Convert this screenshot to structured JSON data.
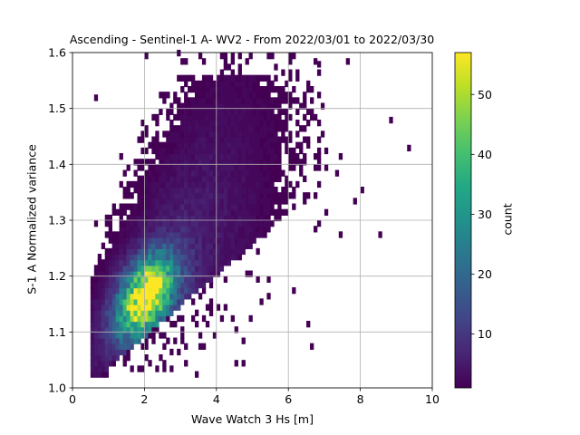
{
  "chart_data": {
    "type": "heatmap",
    "title": "Ascending - Sentinel-1 A- WV2 - From 2022/03/01 to 2022/03/30",
    "xlabel": "Wave Watch 3 Hs [m]",
    "ylabel": "S-1 A Normalized variance",
    "xlim": [
      0,
      10
    ],
    "ylim": [
      1.0,
      1.6
    ],
    "xticks": [
      "0",
      "2",
      "4",
      "6",
      "8",
      "10"
    ],
    "yticks": [
      "1.0",
      "1.1",
      "1.2",
      "1.3",
      "1.4",
      "1.5",
      "1.6"
    ],
    "grid": true,
    "colormap": "viridis",
    "colorbar": {
      "label": "count",
      "range": [
        1,
        57
      ],
      "ticks": [
        "10",
        "20",
        "30",
        "40",
        "50"
      ]
    },
    "bin_size": {
      "x": 0.1,
      "y": 0.01
    },
    "density_peak": {
      "x": 2.0,
      "y": 1.16,
      "count": 57
    },
    "outliers": [
      {
        "x": 0.6,
        "y": 1.515,
        "count": 1
      },
      {
        "x": 8.8,
        "y": 1.475,
        "count": 1
      },
      {
        "x": 9.3,
        "y": 1.425,
        "count": 1
      },
      {
        "x": 8.0,
        "y": 1.35,
        "count": 1
      },
      {
        "x": 7.8,
        "y": 1.33,
        "count": 1
      },
      {
        "x": 8.5,
        "y": 1.27,
        "count": 1
      },
      {
        "x": 7.4,
        "y": 1.27,
        "count": 1
      },
      {
        "x": 2.9,
        "y": 1.595,
        "count": 1
      },
      {
        "x": 6.8,
        "y": 1.575,
        "count": 1
      },
      {
        "x": 7.3,
        "y": 1.38,
        "count": 1
      }
    ]
  }
}
